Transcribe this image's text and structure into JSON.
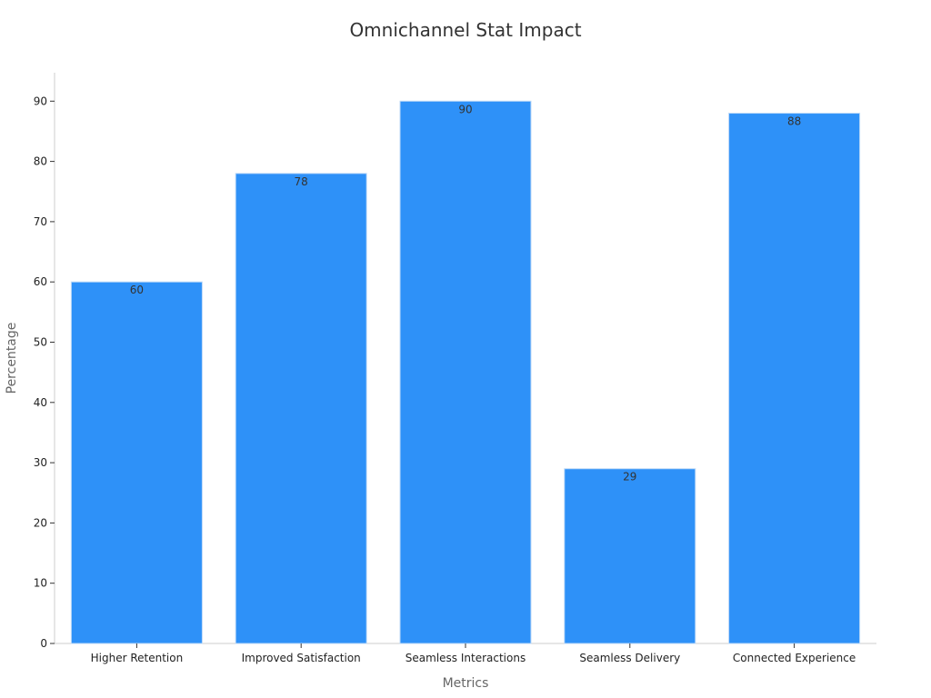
{
  "chart_data": {
    "type": "bar",
    "title": "Omnichannel Stat Impact",
    "xlabel": "Metrics",
    "ylabel": "Percentage",
    "categories": [
      "Higher Retention",
      "Improved Satisfaction",
      "Seamless Interactions",
      "Seamless Delivery",
      "Connected Experience"
    ],
    "values": [
      60,
      78,
      90,
      29,
      88
    ],
    "data_labels": [
      "60",
      "78",
      "90",
      "29",
      "88"
    ],
    "ylim": [
      0,
      95
    ],
    "yticks": [
      0,
      10,
      20,
      30,
      40,
      50,
      60,
      70,
      80,
      90
    ],
    "ytick_labels": [
      "0",
      "10",
      "20",
      "30",
      "40",
      "50",
      "60",
      "70",
      "80",
      "90"
    ],
    "grid": false,
    "bar_color": "#2e91f8",
    "bar_edge_color": "#bdd9f7"
  }
}
